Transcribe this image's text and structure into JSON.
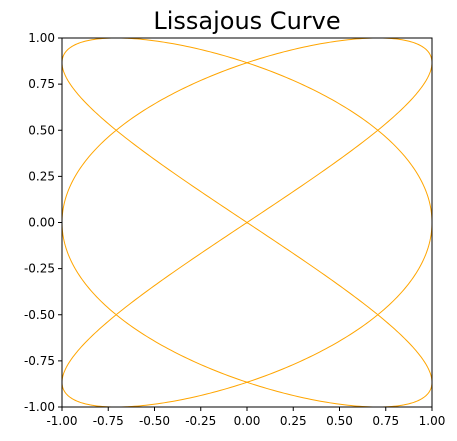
{
  "chart_data": {
    "type": "line",
    "title": "Lissajous Curve",
    "xlabel": "",
    "ylabel": "",
    "xlim": [
      -1.0,
      1.0
    ],
    "ylim": [
      -1.0,
      1.0
    ],
    "grid": false,
    "x_ticks": [
      "-1.00",
      "-0.75",
      "-0.50",
      "-0.25",
      "0.00",
      "0.25",
      "0.50",
      "0.75",
      "1.00"
    ],
    "y_ticks": [
      "1.00",
      "0.75",
      "0.50",
      "0.25",
      "0.00",
      "-0.25",
      "-0.50",
      "-0.75",
      "-1.00"
    ],
    "series": [
      {
        "color": "#ffa500",
        "parametric": {
          "x": "sin(3t + pi/2)",
          "y": "sin(2t)",
          "t_range": [
            0,
            6.283185
          ]
        }
      }
    ]
  }
}
